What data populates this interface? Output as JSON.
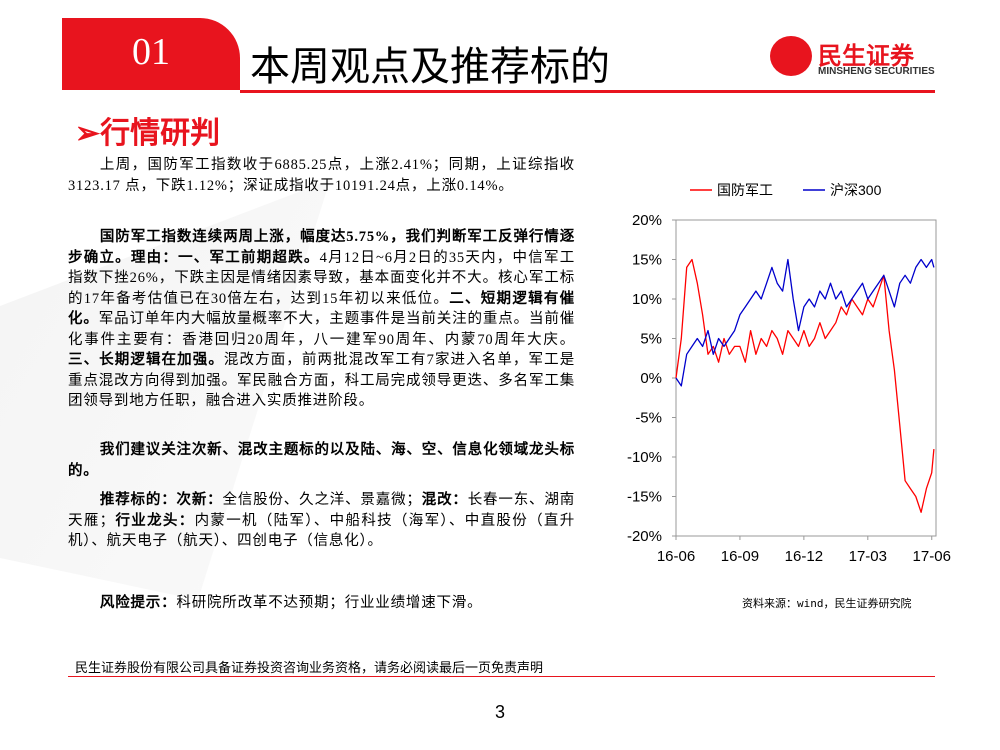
{
  "header": {
    "number": "01",
    "title": "本周观点及推荐标的"
  },
  "logo": {
    "name": "民生证券",
    "sub": "MINSHENG SECURITIES"
  },
  "section_title": "➢行情研判",
  "paragraphs": [
    {
      "runs": [
        {
          "text": "上周，国防军工指数收于6885.25点，上涨2.41%；同期，上证综指收3123.17 点，下跌1.12%；深证成指收于10191.24点，上涨0.14%。",
          "bold": false
        }
      ]
    },
    {
      "runs": [
        {
          "text": "国防军工指数连续两周上涨，幅度达5.75%，我们判断军工反弹行情逐步确立。理由：一、军工前期超跌。",
          "bold": true
        },
        {
          "text": "4月12日~6月2日的35天内，中信军工指数下挫26%，下跌主因是情绪因素导致，基本面变化并不大。核心军工标的17年备考估值已在30倍左右，达到15年初以来低位。",
          "bold": false
        },
        {
          "text": "二、短期逻辑有催化。",
          "bold": true
        },
        {
          "text": "军品订单年内大幅放量概率不大，主题事件是当前关注的重点。当前催化事件主要有：香港回归20周年，八一建军90周年、内蒙70周年大庆。",
          "bold": false
        },
        {
          "text": "三、长期逻辑在加强。",
          "bold": true
        },
        {
          "text": "混改方面，前两批混改军工有7家进入名单，军工是重点混改方向得到加强。军民融合方面，科工局完成领导更迭、多名军工集团领导到地方任职，融合进入实质推进阶段。",
          "bold": false
        }
      ]
    },
    {
      "runs": [
        {
          "text": "我们建议关注次新、混改主题标的以及陆、海、空、信息化领域龙头标的。",
          "bold": true
        }
      ]
    },
    {
      "runs": [
        {
          "text": "推荐标的：次新：",
          "bold": true
        },
        {
          "text": "全信股份、久之洋、景嘉微；",
          "bold": false
        },
        {
          "text": "混改：",
          "bold": true
        },
        {
          "text": "长春一东、湖南天雁；",
          "bold": false
        },
        {
          "text": "行业龙头：",
          "bold": true
        },
        {
          "text": "内蒙一机（陆军）、中船科技（海军）、中直股份（直升机）、航天电子（航天）、四创电子（信息化）。",
          "bold": false
        }
      ]
    },
    {
      "runs": [
        {
          "text": "风险提示：",
          "bold": true
        },
        {
          "text": "科研院所改革不达预期；行业业绩增速下滑。",
          "bold": false
        }
      ]
    }
  ],
  "chart_data": {
    "type": "line",
    "x": [
      0,
      0.25,
      0.5,
      0.75,
      1,
      1.25,
      1.5,
      1.75,
      2,
      2.25,
      2.5,
      2.75,
      3,
      3.25,
      3.5,
      3.75,
      4,
      4.25,
      4.5,
      4.75,
      5,
      5.25,
      5.5,
      5.75,
      6,
      6.25,
      6.5,
      6.75,
      7,
      7.25,
      7.5,
      7.75,
      8,
      8.25,
      8.5,
      8.75,
      9,
      9.25,
      9.5,
      9.75,
      10,
      10.25,
      10.5,
      10.75,
      11,
      11.25,
      11.5,
      11.75,
      12,
      12.1
    ],
    "series": [
      {
        "name": "国防军工",
        "color": "#ff0000",
        "values": [
          0,
          5,
          14,
          15,
          12,
          8,
          3,
          4,
          2,
          5,
          3,
          4,
          4,
          2,
          6,
          3,
          5,
          4,
          6,
          5,
          3,
          6,
          5,
          4,
          6,
          4,
          5,
          7,
          5,
          6,
          7,
          9,
          8,
          10,
          9,
          8,
          10,
          9,
          11,
          13,
          6,
          1,
          -6,
          -13,
          -14,
          -15,
          -17,
          -14,
          -12,
          -9
        ]
      },
      {
        "name": "沪深300",
        "color": "#0000cc",
        "values": [
          0,
          -1,
          3,
          4,
          5,
          4,
          6,
          3,
          5,
          4,
          5,
          6,
          8,
          9,
          10,
          11,
          10,
          12,
          14,
          12,
          11,
          15,
          10,
          6,
          9,
          10,
          9,
          11,
          10,
          12,
          10,
          11,
          9,
          10,
          11,
          12,
          10,
          11,
          12,
          13,
          11,
          9,
          12,
          13,
          12,
          14,
          15,
          14,
          15,
          14
        ]
      }
    ],
    "xlim": [
      0,
      12.2
    ],
    "xticks": [
      {
        "value": 0,
        "label": "16-06"
      },
      {
        "value": 3,
        "label": "16-09"
      },
      {
        "value": 6,
        "label": "16-12"
      },
      {
        "value": 9,
        "label": "17-03"
      },
      {
        "value": 12,
        "label": "17-06"
      }
    ],
    "ylim": [
      -20,
      20
    ],
    "yticks": [
      {
        "value": -20,
        "label": "-20%"
      },
      {
        "value": -15,
        "label": "-15%"
      },
      {
        "value": -10,
        "label": "-10%"
      },
      {
        "value": -5,
        "label": "-5%"
      },
      {
        "value": 0,
        "label": "0%"
      },
      {
        "value": 5,
        "label": "5%"
      },
      {
        "value": 10,
        "label": "10%"
      },
      {
        "value": 15,
        "label": "15%"
      },
      {
        "value": 20,
        "label": "20%"
      }
    ],
    "source": "资料来源：wind，民生证券研究院"
  },
  "footer": "民生证券股份有限公司具备证券投资咨询业务资格，请务必阅读最后一页免责声明",
  "page_number": "3"
}
